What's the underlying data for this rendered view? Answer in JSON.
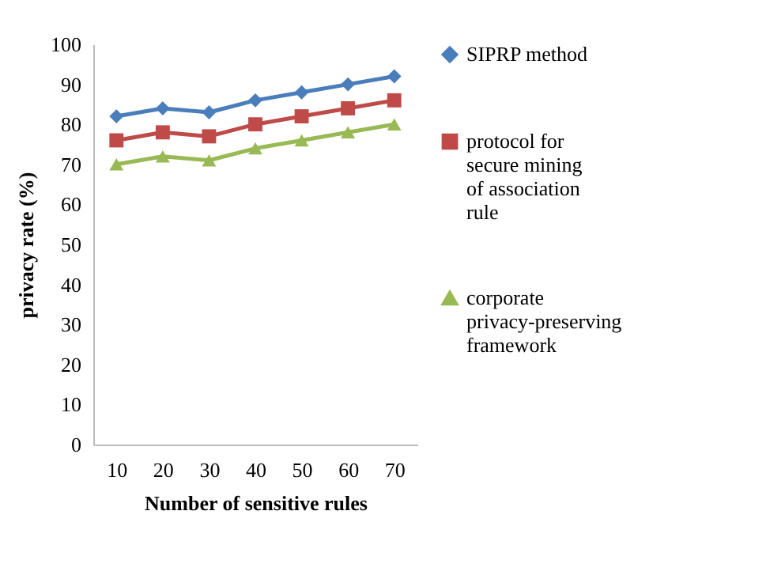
{
  "chart_data": {
    "type": "line",
    "xlabel": "Number of sensitive rules",
    "ylabel": "privacy rate (%)",
    "categories": [
      "10",
      "20",
      "30",
      "40",
      "50",
      "60",
      "70"
    ],
    "ylim": [
      0,
      100
    ],
    "yticks": [
      0,
      10,
      20,
      30,
      40,
      50,
      60,
      70,
      80,
      90,
      100
    ],
    "grid": false,
    "legend": "right",
    "series": [
      {
        "name": "SIPRP method",
        "color": "#4a7ebb",
        "marker": "diamond",
        "values": [
          82,
          84,
          83,
          86,
          88,
          90,
          92
        ]
      },
      {
        "name": "protocol for secure mining of association rule",
        "color": "#be4b48",
        "marker": "square",
        "values": [
          76,
          78,
          77,
          80,
          82,
          84,
          86
        ]
      },
      {
        "name": "corporate privacy-preserving framework",
        "color": "#98b954",
        "marker": "triangle",
        "values": [
          70,
          72,
          71,
          74,
          76,
          78,
          80
        ]
      }
    ]
  }
}
